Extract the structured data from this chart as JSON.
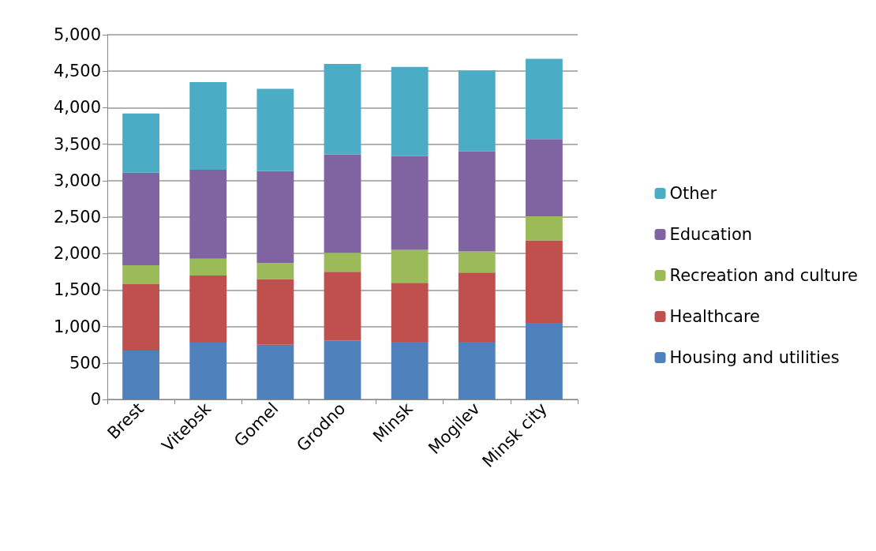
{
  "chart_data": {
    "type": "bar",
    "stacked": true,
    "categories": [
      "Brest",
      "Vitebsk",
      "Gomel",
      "Grodno",
      "Minsk",
      "Mogilev",
      "Minsk city"
    ],
    "series": [
      {
        "name": "Housing and utilities",
        "color": "#4f81bd",
        "values": [
          670,
          780,
          750,
          810,
          790,
          790,
          1050
        ]
      },
      {
        "name": "Healthcare",
        "color": "#c0504d",
        "values": [
          910,
          920,
          900,
          940,
          810,
          950,
          1130
        ]
      },
      {
        "name": "Recreation and culture",
        "color": "#9bbb59",
        "values": [
          260,
          230,
          220,
          260,
          450,
          290,
          330
        ]
      },
      {
        "name": "Education",
        "color": "#8064a2",
        "values": [
          1270,
          1220,
          1260,
          1350,
          1290,
          1370,
          1060
        ]
      },
      {
        "name": "Other",
        "color": "#4bacc6",
        "values": [
          810,
          1200,
          1130,
          1240,
          1220,
          1110,
          1100
        ]
      }
    ],
    "ylim": [
      0,
      5000
    ],
    "yticks": [
      0,
      500,
      {
        "value": 1000,
        "label": "1,000"
      },
      {
        "value": 1500,
        "label": "1,500"
      },
      {
        "value": 2000,
        "label": "2,000"
      },
      {
        "value": 2500,
        "label": "2,500"
      },
      {
        "value": 3000,
        "label": "3,000"
      },
      {
        "value": 3500,
        "label": "3,500"
      },
      {
        "value": 4000,
        "label": "4,000"
      },
      {
        "value": 4500,
        "label": "4,500"
      },
      {
        "value": 5000,
        "label": "5,000"
      }
    ],
    "grid": "y",
    "legend": "right"
  }
}
